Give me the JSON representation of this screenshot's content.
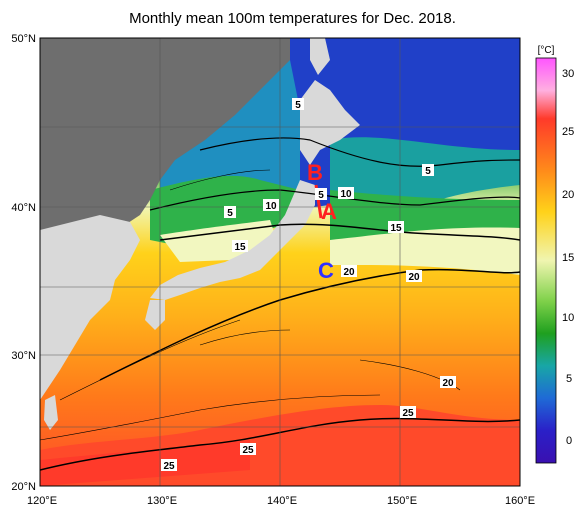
{
  "title": "Monthly mean 100m temperatures for Dec. 2018.",
  "axes": {
    "lat_labels": [
      "50°N",
      "40°N",
      "30°N",
      "20°N"
    ],
    "lon_labels": [
      "120°E",
      "130°E",
      "140°E",
      "150°E",
      "160°E"
    ]
  },
  "colorbar": {
    "unit": "[°C]",
    "ticks": [
      "30",
      "25",
      "20",
      "15",
      "10",
      "5",
      "0"
    ],
    "stops": [
      "#ff55ff",
      "#ff3a2a",
      "#ff8c1a",
      "#ffd21a",
      "#f0f5b0",
      "#7fd14a",
      "#1fa01f",
      "#18a6a6",
      "#1f6ad6",
      "#2a20c8",
      "#3a10b0"
    ]
  },
  "contour_labels": [
    "5",
    "5",
    "10",
    "5",
    "10",
    "5",
    "15",
    "15",
    "20",
    "20",
    "20",
    "25",
    "25",
    "25"
  ],
  "markers": {
    "a": {
      "text": "A",
      "color": "#ff2020"
    },
    "b": {
      "text": "B",
      "color": "#ff2020"
    },
    "c": {
      "text": "C",
      "color": "#3030ff"
    }
  },
  "colors": {
    "land_japan": "#6e6e6e",
    "land_asia": "#d9d9d9"
  }
}
